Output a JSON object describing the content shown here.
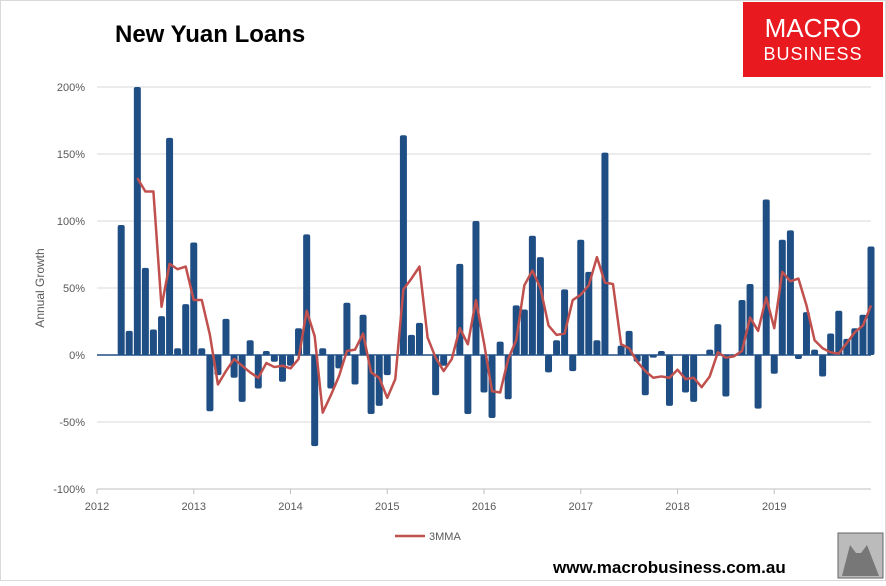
{
  "chart_data": {
    "type": "bar",
    "title": "New Yuan Loans",
    "y_label": "Annual Growth",
    "x": [
      2012.25,
      2012.333,
      2012.417,
      2012.5,
      2012.583,
      2012.667,
      2012.75,
      2012.833,
      2012.917,
      2013.0,
      2013.083,
      2013.167,
      2013.25,
      2013.333,
      2013.417,
      2013.5,
      2013.583,
      2013.667,
      2013.75,
      2013.833,
      2013.917,
      2014.0,
      2014.083,
      2014.167,
      2014.25,
      2014.333,
      2014.417,
      2014.5,
      2014.583,
      2014.667,
      2014.75,
      2014.833,
      2014.917,
      2015.0,
      2015.083,
      2015.167,
      2015.25,
      2015.333,
      2015.417,
      2015.5,
      2015.583,
      2015.667,
      2015.75,
      2015.833,
      2015.917,
      2016.0,
      2016.083,
      2016.167,
      2016.25,
      2016.333,
      2016.417,
      2016.5,
      2016.583,
      2016.667,
      2016.75,
      2016.833,
      2016.917,
      2017.0,
      2017.083,
      2017.167,
      2017.25,
      2017.333,
      2017.417,
      2017.5,
      2017.583,
      2017.667,
      2017.75,
      2017.833,
      2017.917,
      2018.0,
      2018.083,
      2018.167,
      2018.25,
      2018.333,
      2018.417,
      2018.5,
      2018.583,
      2018.667,
      2018.75,
      2018.833,
      2018.917,
      2019.0,
      2019.083,
      2019.167,
      2019.25,
      2019.333,
      2019.417,
      2019.5,
      2019.583,
      2019.667,
      2019.75,
      2019.833,
      2019.917,
      2020.0
    ],
    "series": [
      {
        "type": "bar",
        "color": "#1f4e84",
        "values": [
          97,
          18,
          200,
          65,
          19,
          29,
          162,
          5,
          38,
          84,
          5,
          -42,
          -15,
          27,
          -17,
          -35,
          11,
          -25,
          3,
          -5,
          -20,
          -8,
          20,
          90,
          -68,
          5,
          -25,
          -10,
          39,
          -22,
          30,
          -44,
          -38,
          -15,
          0,
          164,
          15,
          24,
          0,
          -30,
          -8,
          0,
          68,
          -44,
          100,
          -28,
          -47,
          10,
          -33,
          37,
          34,
          89,
          73,
          -13,
          11,
          49,
          -12,
          86,
          62,
          11,
          151,
          0,
          7,
          18,
          -5,
          -30,
          -2,
          3,
          -38,
          0,
          -28,
          -35,
          0,
          4,
          23,
          -31,
          0,
          41,
          53,
          -40,
          116,
          -14,
          86,
          93,
          -3,
          32,
          4,
          -16,
          16,
          33,
          12,
          20,
          30,
          81
        ]
      },
      {
        "type": "line",
        "name": "3MMA",
        "color": "#c0504d",
        "values": [
          null,
          null,
          132,
          122,
          122,
          36,
          68,
          64,
          66,
          41,
          41,
          15,
          -22,
          -12,
          -3,
          -8,
          -13,
          -17,
          -6,
          -9,
          -8,
          -10,
          -3,
          33,
          14,
          -43,
          -30,
          -16,
          3,
          4,
          16,
          -13,
          -17,
          -32,
          -18,
          49,
          57,
          66,
          13,
          -2,
          -12,
          -3,
          20,
          8,
          41,
          9,
          -27,
          -28,
          -3,
          11,
          52,
          63,
          50,
          22,
          15,
          16,
          41,
          45,
          52,
          73,
          54,
          53,
          8,
          5,
          -5,
          -12,
          -17,
          -16,
          -17,
          -11,
          -18,
          -17,
          -24,
          -16,
          2,
          -2,
          -1,
          3,
          28,
          18,
          43,
          20,
          62,
          55,
          57,
          37,
          11,
          5,
          2,
          1,
          9,
          17,
          22,
          37
        ]
      }
    ],
    "xlim": [
      2012,
      2020
    ],
    "xticks": [
      2012,
      2013,
      2014,
      2015,
      2016,
      2017,
      2018,
      2019
    ],
    "ylim": [
      -100,
      200
    ],
    "yticks": [
      {
        "value": -100,
        "label": "-100%"
      },
      {
        "value": -50,
        "label": "-50%"
      },
      {
        "value": 0,
        "label": "0%"
      },
      {
        "value": 50,
        "label": "50%"
      },
      {
        "value": 100,
        "label": "100%"
      },
      {
        "value": 150,
        "label": "150%"
      },
      {
        "value": 200,
        "label": "200%"
      }
    ],
    "grid": true,
    "legend": "bottom"
  },
  "logo": {
    "line1": "MACRO",
    "line2": "BUSINESS"
  },
  "footer": "www.macrobusiness.com.au"
}
